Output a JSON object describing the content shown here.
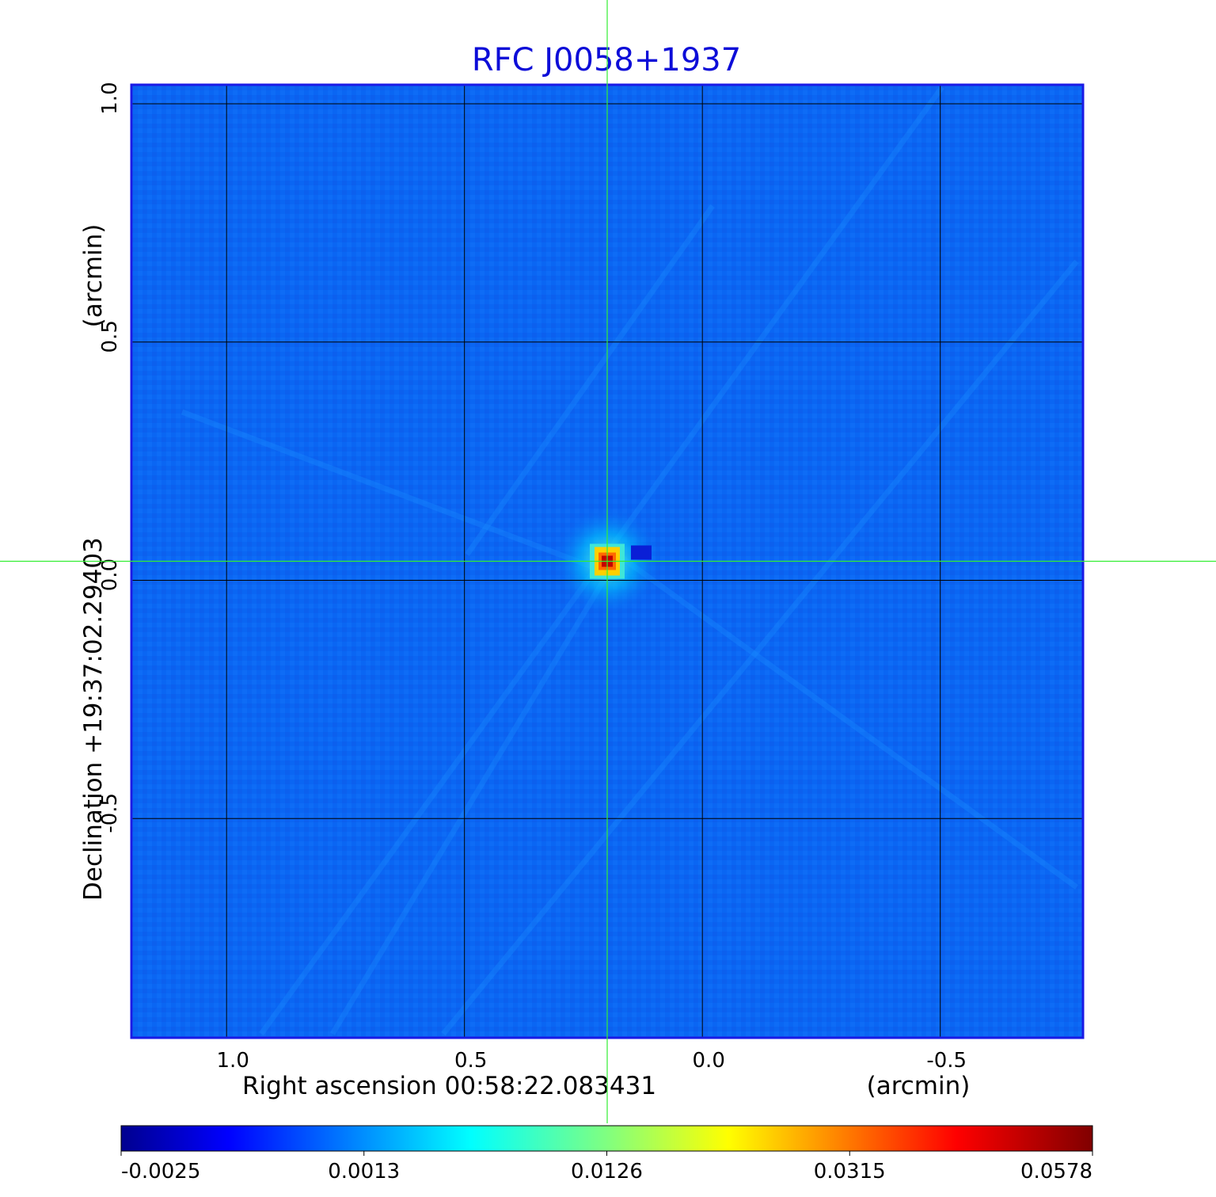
{
  "chart_data": {
    "type": "heatmap",
    "title": "RFC J0058+1937",
    "xlabel": "Right ascension  00:58:22.083431",
    "xunit": "(arcmin)",
    "ylabel": "Declination  +19:37:02.29403",
    "yunit": "(arcmin)",
    "x_ticks": [
      "1.0",
      "0.5",
      "0.0",
      "-0.5"
    ],
    "x_tick_values": [
      1.0,
      0.5,
      0.0,
      -0.5
    ],
    "y_ticks": [
      "1.0",
      "0.5",
      "0.0",
      "-0.5"
    ],
    "y_tick_values": [
      1.0,
      0.5,
      0.0,
      -0.5
    ],
    "xlim": [
      1.2,
      -0.8
    ],
    "ylim": [
      -0.96,
      1.04
    ],
    "grid": true,
    "crosshair": {
      "x": 0.2,
      "y": 0.04
    },
    "source_peak": {
      "x": 0.2,
      "y": 0.04,
      "value": 0.0578
    },
    "colorbar": {
      "ticks": [
        "-0.0025",
        "0.0013",
        "0.0126",
        "0.0315",
        "0.0578"
      ],
      "colormap": "jet"
    },
    "colors": {
      "title": "#0d0dd8",
      "background_map": "#0a64f2",
      "grid": "#000000",
      "crosshair": "#33ee33",
      "frame": "#1a1ae6"
    }
  }
}
